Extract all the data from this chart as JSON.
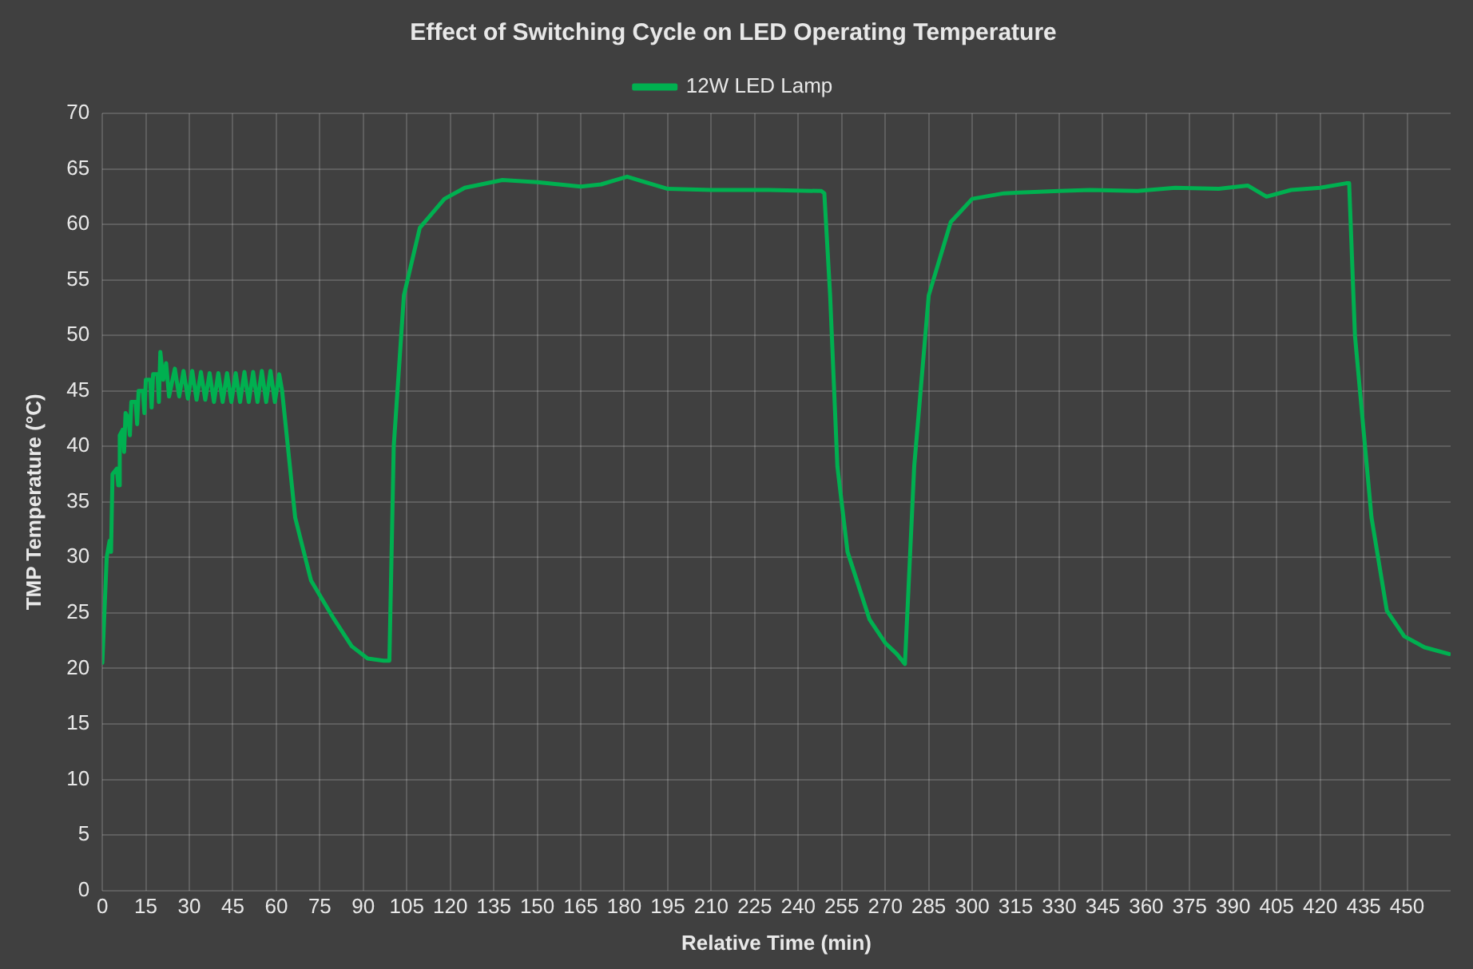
{
  "chart_data": {
    "type": "line",
    "title": "Effect of Switching Cycle on LED Operating Temperature",
    "xlabel": "Relative Time (min)",
    "ylabel": "TMP Temperature (°C)",
    "xlim": [
      0,
      465
    ],
    "xticks": [
      0,
      15,
      30,
      45,
      60,
      75,
      90,
      105,
      120,
      135,
      150,
      165,
      180,
      195,
      210,
      225,
      240,
      255,
      270,
      285,
      300,
      315,
      330,
      345,
      360,
      375,
      390,
      405,
      420,
      435,
      450
    ],
    "ylim": [
      0,
      70
    ],
    "yticks": [
      0,
      5,
      10,
      15,
      20,
      25,
      30,
      35,
      40,
      45,
      50,
      55,
      60,
      65,
      70
    ],
    "grid": true,
    "legend": "top",
    "marker": "none",
    "line_style": "solid",
    "series": [
      {
        "name": "12W LED Lamp",
        "color": "#00b050",
        "x": [
          0,
          1.5,
          2.5,
          3,
          3.5,
          5,
          5.5,
          6,
          7,
          7.5,
          8,
          9,
          9.5,
          10,
          11.5,
          12,
          12.5,
          14,
          14.5,
          15,
          16.5,
          17,
          17.5,
          19,
          19.5,
          20,
          21,
          22,
          23,
          25,
          26.5,
          28,
          29.5,
          31,
          32.5,
          34,
          35.5,
          37,
          38.5,
          40,
          41.5,
          43,
          44.5,
          46,
          47.5,
          49,
          50.5,
          52,
          53.5,
          55,
          56.5,
          58,
          59.5,
          61,
          62,
          66.5,
          72,
          80,
          86,
          91.5,
          97,
          99,
          100.5,
          104,
          109.5,
          118,
          125,
          138,
          150,
          165,
          172,
          181,
          186,
          195,
          210,
          230,
          248,
          249,
          251,
          253.5,
          257,
          264.6,
          270,
          274,
          276.8,
          280,
          285,
          292.6,
          300,
          311,
          330,
          340.6,
          357,
          370,
          385,
          395,
          401.5,
          410,
          420,
          429,
          430,
          432,
          437.7,
          443,
          449,
          456,
          464.5
        ],
        "values": [
          20.5,
          30,
          31.5,
          30.5,
          37.5,
          38,
          36.5,
          41,
          41.5,
          39.5,
          43,
          42.5,
          41,
          44,
          44,
          42,
          45,
          45,
          43,
          46,
          46,
          43.5,
          46.5,
          46.5,
          44,
          48.5,
          46,
          47.5,
          44.5,
          47,
          44.5,
          46.8,
          44.3,
          46.8,
          44.2,
          46.7,
          44.2,
          46.6,
          44,
          46.6,
          44,
          46.6,
          44,
          46.6,
          44,
          46.7,
          44,
          46.7,
          44,
          46.8,
          44,
          46.8,
          44,
          46.5,
          45,
          33.6,
          27.9,
          24.4,
          22,
          20.9,
          20.7,
          20.7,
          40,
          53.6,
          59.7,
          62.3,
          63.3,
          64,
          63.8,
          63.4,
          63.6,
          64.3,
          63.9,
          63.2,
          63.1,
          63.1,
          63,
          62.8,
          53.6,
          38.2,
          30.5,
          24.4,
          22.3,
          21.3,
          20.4,
          38.2,
          53.6,
          60.2,
          62.3,
          62.8,
          63,
          63.1,
          63,
          63.3,
          63.2,
          63.5,
          62.5,
          63.1,
          63.3,
          63.7,
          63.7,
          50,
          33.6,
          25.2,
          22.9,
          21.9,
          21.3
        ]
      }
    ]
  }
}
